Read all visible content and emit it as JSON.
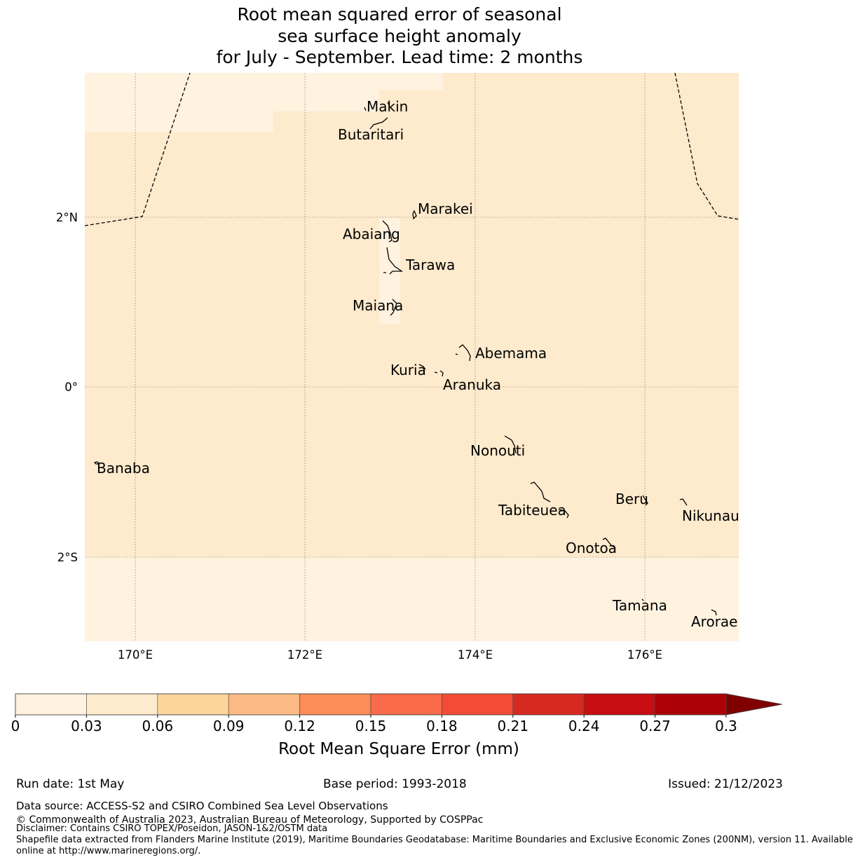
{
  "title": {
    "line1": "Root mean squared error of seasonal",
    "line2": "sea surface height anomaly",
    "line3": "for July - September. Lead time: 2 months"
  },
  "axes": {
    "x_ticks": [
      "170°E",
      "172°E",
      "174°E",
      "176°E"
    ],
    "y_ticks": [
      "2°N",
      "0°",
      "2°S"
    ]
  },
  "places": [
    {
      "name": "Makin"
    },
    {
      "name": "Butaritari"
    },
    {
      "name": "Marakei"
    },
    {
      "name": "Abaiang"
    },
    {
      "name": "Tarawa"
    },
    {
      "name": "Maiana"
    },
    {
      "name": "Abemama"
    },
    {
      "name": "Kuria"
    },
    {
      "name": "Aranuka"
    },
    {
      "name": "Nonouti"
    },
    {
      "name": "Banaba"
    },
    {
      "name": "Beru"
    },
    {
      "name": "Tabiteuea"
    },
    {
      "name": "Nikunau"
    },
    {
      "name": "Onotoa"
    },
    {
      "name": "Tamana"
    },
    {
      "name": "Arorae"
    }
  ],
  "colorbar": {
    "label": "Root Mean Square Error (mm)",
    "ticks": [
      "0",
      "0.03",
      "0.06",
      "0.09",
      "0.12",
      "0.15",
      "0.18",
      "0.21",
      "0.24",
      "0.27",
      "0.3"
    ],
    "colors": [
      "#fff2df",
      "#feeacc",
      "#fdd49c",
      "#fdba84",
      "#fc8c58",
      "#fb6a4a",
      "#f44b36",
      "#d6291f",
      "#c80e12",
      "#ad0108"
    ],
    "extend_color": "#800000"
  },
  "map_colors": {
    "level_1": "#fff2df",
    "level_2": "#feeacc"
  },
  "footer": {
    "run_date": "Run date: 1st May",
    "base_period": "Base period: 1993-2018",
    "issued": "Issued: 21/12/2023",
    "data_source": "Data source: ACCESS-S2 and CSIRO Combined Sea Level Observations",
    "copyright": "© Commonwealth of Australia 2023, Australian Bureau of Meteorology, Supported by COSPPac",
    "disclaimer": "Disclaimer: Contains CSIRO TOPEX/Poseidon, JASON-1&2/OSTM data",
    "shapefile_1": "Shapefile data extracted from Flanders Marine Institute (2019), Maritime Boundaries Geodatabase: Maritime Boundaries and Exclusive Economic Zones (200NM), version 11. Available",
    "shapefile_2": "online at http://www.marineregions.org/."
  }
}
